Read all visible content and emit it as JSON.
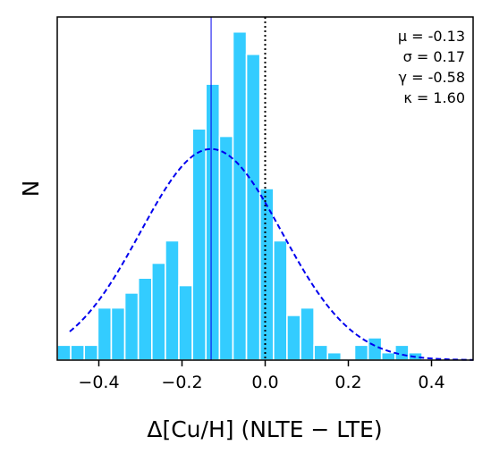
{
  "chart_data": {
    "type": "bar",
    "xlabel": "Δ[Cu/H] (NLTE − LTE)",
    "ylabel": "N",
    "xlim": [
      -0.5,
      0.5
    ],
    "ylim": [
      0,
      46
    ],
    "xticks": [
      -0.4,
      -0.2,
      0.0,
      0.2,
      0.4
    ],
    "xtick_labels": [
      "−0.4",
      "−0.2",
      "0.0",
      "0.2",
      "0.4"
    ],
    "yticks_shown": false,
    "grid": false,
    "bin_width": 0.0325,
    "bins": [
      {
        "x0": -0.5,
        "count": 2
      },
      {
        "x0": -0.4675,
        "count": 2
      },
      {
        "x0": -0.435,
        "count": 2
      },
      {
        "x0": -0.4025,
        "count": 7
      },
      {
        "x0": -0.37,
        "count": 7
      },
      {
        "x0": -0.3375,
        "count": 9
      },
      {
        "x0": -0.305,
        "count": 11
      },
      {
        "x0": -0.2725,
        "count": 13
      },
      {
        "x0": -0.24,
        "count": 16
      },
      {
        "x0": -0.2075,
        "count": 10
      },
      {
        "x0": -0.175,
        "count": 31
      },
      {
        "x0": -0.1425,
        "count": 37
      },
      {
        "x0": -0.11,
        "count": 30
      },
      {
        "x0": -0.0775,
        "count": 44
      },
      {
        "x0": -0.045,
        "count": 41
      },
      {
        "x0": -0.0125,
        "count": 23
      },
      {
        "x0": 0.02,
        "count": 16
      },
      {
        "x0": 0.0525,
        "count": 6
      },
      {
        "x0": 0.085,
        "count": 7
      },
      {
        "x0": 0.1175,
        "count": 2
      },
      {
        "x0": 0.15,
        "count": 1
      },
      {
        "x0": 0.1825,
        "count": 0
      },
      {
        "x0": 0.215,
        "count": 2
      },
      {
        "x0": 0.2475,
        "count": 3
      },
      {
        "x0": 0.28,
        "count": 1
      },
      {
        "x0": 0.3125,
        "count": 2
      },
      {
        "x0": 0.345,
        "count": 1
      }
    ],
    "bar_color": "#33ccff",
    "gaussian_fit": {
      "mu": -0.13,
      "sigma": 0.17,
      "peak": 28.3,
      "color": "#0000ee",
      "style": "dashed"
    },
    "mean_line": {
      "x": -0.13,
      "color": "#0000ee"
    },
    "zero_line": {
      "x": 0.0,
      "color": "#000000",
      "style": "dotted"
    },
    "annotations": [
      "μ = -0.13",
      "σ = 0.17",
      "γ = -0.58",
      "κ = 1.60"
    ],
    "annotation_placement": "top-right"
  }
}
